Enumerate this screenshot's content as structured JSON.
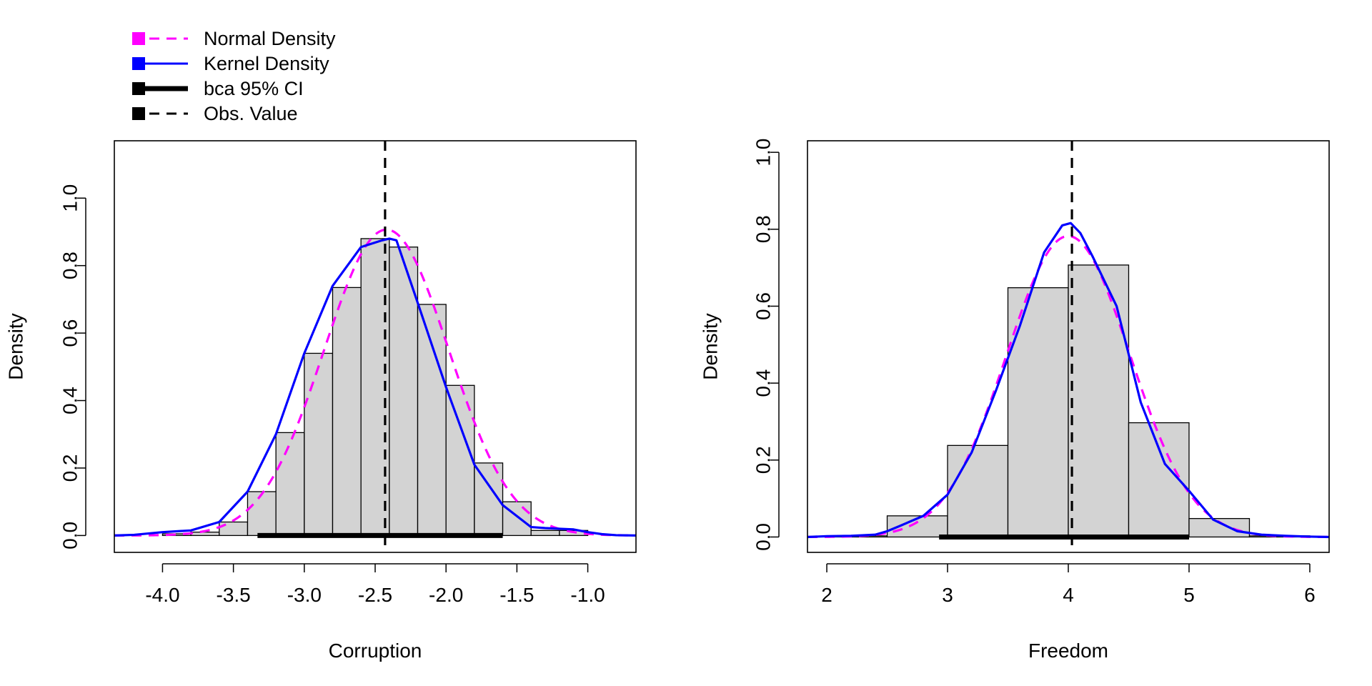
{
  "legend": {
    "items": [
      {
        "label": "Normal Density",
        "color": "#ff00ff",
        "style": "dashed",
        "marker": "square"
      },
      {
        "label": "Kernel Density",
        "color": "#0000ff",
        "style": "solid",
        "marker": "square"
      },
      {
        "label": "bca 95% CI",
        "color": "#000000",
        "style": "thick",
        "marker": "square"
      },
      {
        "label": "Obs. Value",
        "color": "#000000",
        "style": "dashed",
        "marker": "square"
      }
    ]
  },
  "chart_data": [
    {
      "type": "histogram",
      "title": "",
      "xlabel": "Corruption",
      "ylabel": "Density",
      "xlim": [
        -4.34,
        -0.66
      ],
      "ylim": [
        -0.05,
        1.17
      ],
      "xticks": [
        -4.0,
        -3.5,
        -3.0,
        -2.5,
        -2.0,
        -1.5,
        -1.0
      ],
      "xtick_labels": [
        "-4.0",
        "-3.5",
        "-3.0",
        "-2.5",
        "-2.0",
        "-1.5",
        "-1.0"
      ],
      "yticks": [
        0.0,
        0.2,
        0.4,
        0.6,
        0.8,
        1.0
      ],
      "ytick_labels": [
        "0.0",
        "0.2",
        "0.4",
        "0.6",
        "0.8",
        "1.0"
      ],
      "bins": [
        {
          "x0": -4.0,
          "x1": -3.8,
          "value": 0.005
        },
        {
          "x0": -3.8,
          "x1": -3.6,
          "value": 0.01
        },
        {
          "x0": -3.6,
          "x1": -3.4,
          "value": 0.04
        },
        {
          "x0": -3.4,
          "x1": -3.2,
          "value": 0.13
        },
        {
          "x0": -3.2,
          "x1": -3.0,
          "value": 0.305
        },
        {
          "x0": -3.0,
          "x1": -2.8,
          "value": 0.54
        },
        {
          "x0": -2.8,
          "x1": -2.6,
          "value": 0.735
        },
        {
          "x0": -2.6,
          "x1": -2.4,
          "value": 0.88
        },
        {
          "x0": -2.4,
          "x1": -2.2,
          "value": 0.855
        },
        {
          "x0": -2.2,
          "x1": -2.0,
          "value": 0.685
        },
        {
          "x0": -2.0,
          "x1": -1.8,
          "value": 0.445
        },
        {
          "x0": -1.8,
          "x1": -1.6,
          "value": 0.215
        },
        {
          "x0": -1.6,
          "x1": -1.4,
          "value": 0.1
        },
        {
          "x0": -1.4,
          "x1": -1.2,
          "value": 0.015
        },
        {
          "x0": -1.2,
          "x1": -1.0,
          "value": 0.015
        }
      ],
      "normal_density": {
        "mean": -2.42,
        "sd": 0.44
      },
      "kernel_density": {
        "x": [
          -4.34,
          -4.2,
          -4.0,
          -3.8,
          -3.6,
          -3.4,
          -3.2,
          -3.0,
          -2.8,
          -2.6,
          -2.45,
          -2.4,
          -2.35,
          -2.2,
          -2.0,
          -1.8,
          -1.6,
          -1.4,
          -1.3,
          -1.2,
          -1.1,
          -1.0,
          -0.9,
          -0.8,
          -0.66
        ],
        "y": [
          0.0,
          0.002,
          0.01,
          0.015,
          0.04,
          0.13,
          0.3,
          0.54,
          0.74,
          0.855,
          0.875,
          0.88,
          0.875,
          0.69,
          0.44,
          0.21,
          0.09,
          0.025,
          0.022,
          0.02,
          0.018,
          0.01,
          0.004,
          0.001,
          0.0
        ]
      },
      "ci": [
        -3.33,
        -1.6
      ],
      "observed": -2.43
    },
    {
      "type": "histogram",
      "title": "",
      "xlabel": "Freedom",
      "ylabel": "Density",
      "xlim": [
        1.84,
        6.16
      ],
      "ylim": [
        -0.04,
        1.03
      ],
      "xticks": [
        2,
        3,
        4,
        5,
        6
      ],
      "xtick_labels": [
        "2",
        "3",
        "4",
        "5",
        "6"
      ],
      "yticks": [
        0.0,
        0.2,
        0.4,
        0.6,
        0.8,
        1.0
      ],
      "ytick_labels": [
        "0.0",
        "0.2",
        "0.4",
        "0.6",
        "0.8",
        "1.0"
      ],
      "bins": [
        {
          "x0": 2.0,
          "x1": 2.5,
          "value": 0.003
        },
        {
          "x0": 2.5,
          "x1": 3.0,
          "value": 0.055
        },
        {
          "x0": 3.0,
          "x1": 3.5,
          "value": 0.238
        },
        {
          "x0": 3.5,
          "x1": 4.0,
          "value": 0.648
        },
        {
          "x0": 4.0,
          "x1": 4.5,
          "value": 0.707
        },
        {
          "x0": 4.5,
          "x1": 5.0,
          "value": 0.297
        },
        {
          "x0": 5.0,
          "x1": 5.5,
          "value": 0.048
        },
        {
          "x0": 5.5,
          "x1": 6.0,
          "value": 0.003
        }
      ],
      "normal_density": {
        "mean": 4.0,
        "sd": 0.51
      },
      "kernel_density": {
        "x": [
          1.84,
          2.0,
          2.2,
          2.4,
          2.5,
          2.6,
          2.8,
          3.0,
          3.2,
          3.4,
          3.6,
          3.8,
          3.95,
          4.02,
          4.1,
          4.2,
          4.4,
          4.6,
          4.8,
          5.0,
          5.2,
          5.4,
          5.6,
          5.8,
          6.0,
          6.16
        ],
        "y": [
          0.0,
          0.002,
          0.003,
          0.006,
          0.015,
          0.028,
          0.055,
          0.11,
          0.22,
          0.38,
          0.55,
          0.74,
          0.81,
          0.816,
          0.79,
          0.73,
          0.6,
          0.35,
          0.19,
          0.12,
          0.045,
          0.015,
          0.006,
          0.003,
          0.001,
          0.0
        ]
      },
      "ci": [
        2.93,
        5.0
      ],
      "observed": 4.03
    }
  ]
}
